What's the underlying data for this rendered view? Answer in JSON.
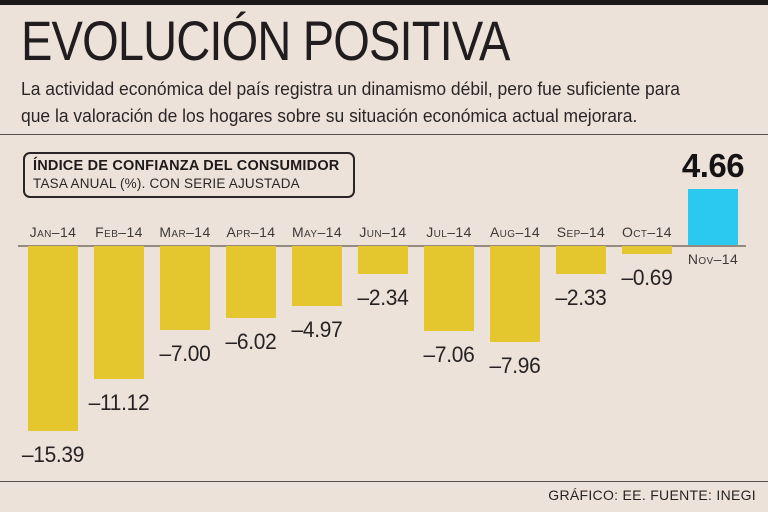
{
  "page": {
    "title": "EVOLUCIÓN POSITIVA",
    "subtitle_line1": "La actividad económica del país registra un dinamismo débil, pero fue suficiente para",
    "subtitle_line2": "que la valoración de los hogares sobre su situación económica actual mejorara.",
    "footer": "GRÁFICO: EE. FUENTE: INEGI"
  },
  "legend": {
    "line1": "ÍNDICE DE CONFIANZA DEL CONSUMIDOR",
    "line2": "TASA ANUAL (%). CON SERIE AJUSTADA"
  },
  "chart_data": {
    "type": "bar",
    "title": "ÍNDICE DE CONFIANZA DEL CONSUMIDOR",
    "subtitle": "TASA ANUAL (%). CON SERIE AJUSTADA",
    "categories": [
      "Jan–14",
      "Feb–14",
      "Mar–14",
      "Apr–14",
      "May–14",
      "Jun–14",
      "Jul–14",
      "Aug–14",
      "Sep–14",
      "Oct–14",
      "Nov–14"
    ],
    "values": [
      -15.39,
      -11.12,
      -7.0,
      -6.02,
      -4.97,
      -2.34,
      -7.06,
      -7.96,
      -2.33,
      -0.69,
      4.66
    ],
    "value_labels": [
      "–15.39",
      "–11.12",
      "–7.00",
      "–6.02",
      "–4.97",
      "–2.34",
      "–7.06",
      "–7.96",
      "–2.33",
      "–0.69",
      "4.66"
    ],
    "highlight_index": 10,
    "highlight_value": "4.66",
    "ylim": [
      -16,
      5
    ],
    "grid": false,
    "legend_position": "top-left box",
    "xlabel": "",
    "ylabel": "Tasa anual (%)"
  },
  "colors": {
    "background": "#ece2da",
    "bar_yellow": "#e4c72f",
    "bar_cyan": "#2bc9f0",
    "top_strip": "#1b1817",
    "rule": "#55504b",
    "zero_line": "#948a7e",
    "text": "#272324"
  }
}
